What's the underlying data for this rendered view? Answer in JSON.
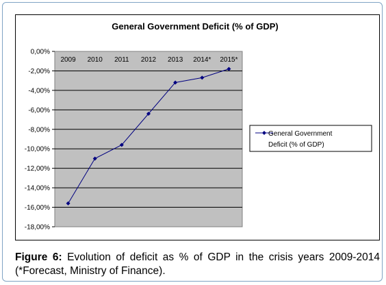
{
  "chart_data": {
    "type": "line",
    "title": "General Government Deficit (% of GDP)",
    "xlabel": "",
    "ylabel": "",
    "categories": [
      "2009",
      "2010",
      "2011",
      "2012",
      "2013",
      "2014*",
      "2015*"
    ],
    "series": [
      {
        "name": "General Government Deficit (% of GDP)",
        "values": [
          -15.6,
          -11.0,
          -9.6,
          -6.4,
          -3.2,
          -2.7,
          -1.8
        ],
        "color": "#000080"
      }
    ],
    "ylim": [
      -18,
      0
    ],
    "yticks": [
      "0,00%",
      "-2,00%",
      "-4,00%",
      "-6,00%",
      "-8,00%",
      "-10,00%",
      "-12,00%",
      "-14,00%",
      "-16,00%",
      "-18,00%"
    ],
    "grid": true,
    "legend_position": "right",
    "legend_lines": [
      "General Government",
      "Deficit (% of GDP)"
    ],
    "plot_background": "#c0c0c0"
  },
  "caption": {
    "label": "Figure 6:",
    "text": "Evolution of deficit as % of GDP in the crisis years 2009-2014 (*Forecast, Ministry of Finance)."
  }
}
